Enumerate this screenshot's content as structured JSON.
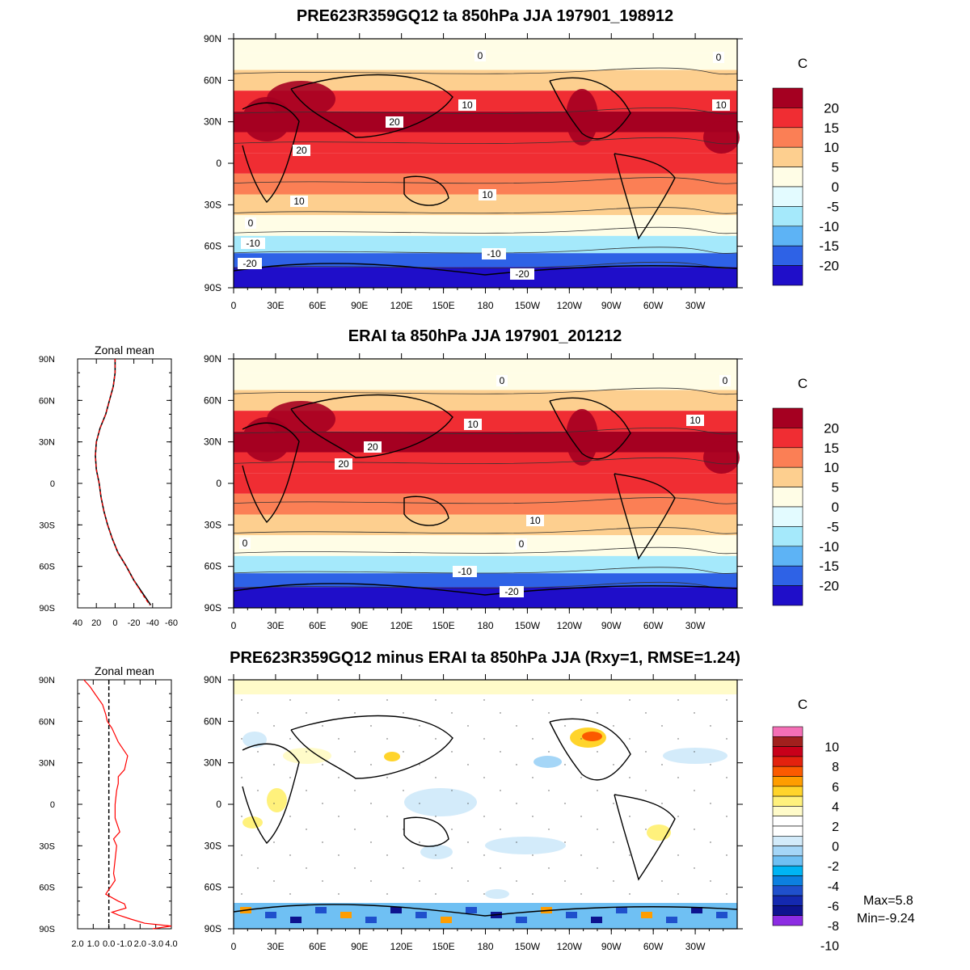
{
  "panels": [
    {
      "title": "PRE623R359GQ12 ta 850hPa JJA 197901_198912",
      "units": "C",
      "colorbar": {
        "colors": [
          "#a50021",
          "#f02d33",
          "#fb7f55",
          "#fdcf8f",
          "#fffde6",
          "#e3fbff",
          "#a5e9fb",
          "#5db3f5",
          "#2e62e6",
          "#1f0ec9"
        ],
        "labels": [
          "20",
          "15",
          "10",
          "5",
          "0",
          "-5",
          "-10",
          "-15",
          "-20"
        ]
      },
      "contour_labels": [
        "0",
        "0",
        "10",
        "10",
        "20",
        "20",
        "10",
        "10",
        "0",
        "-10",
        "-10",
        "-20",
        "-20"
      ]
    },
    {
      "title": "ERAI ta 850hPa JJA 197901_201212",
      "units": "C",
      "colorbar": {
        "colors": [
          "#a50021",
          "#f02d33",
          "#fb7f55",
          "#fdcf8f",
          "#fffde6",
          "#e3fbff",
          "#a5e9fb",
          "#5db3f5",
          "#2e62e6",
          "#1f0ec9"
        ],
        "labels": [
          "20",
          "15",
          "10",
          "5",
          "0",
          "-5",
          "-10",
          "-15",
          "-20"
        ]
      },
      "contour_labels": [
        "0",
        "0",
        "10",
        "10",
        "20",
        "20",
        "10",
        "0",
        "0",
        "-10",
        "-20"
      ]
    },
    {
      "title": "PRE623R359GQ12 minus ERAI ta 850hPa JJA (Rxy=1, RMSE=1.24)",
      "units": "C",
      "colorbar": {
        "colors": [
          "#f46fb6",
          "#a1201d",
          "#c8001a",
          "#e3220e",
          "#fb5a00",
          "#ff9d00",
          "#ffd42b",
          "#fff17c",
          "#fffbc9",
          "#ffffff",
          "#ffffff",
          "#d3ebfa",
          "#a5d6f7",
          "#6fc0f3",
          "#00b4f4",
          "#0c80e0",
          "#1f50cc",
          "#1429b0",
          "#0d138f",
          "#8c2ce3"
        ],
        "labels": [
          "10",
          "8",
          "6",
          "4",
          "2",
          "0",
          "-2",
          "-4",
          "-6",
          "-8",
          "-10"
        ]
      },
      "max_text": "Max=5.8",
      "min_text": "Min=-9.24"
    }
  ],
  "map_axes": {
    "lat_labels": [
      "90N",
      "60N",
      "30N",
      "0",
      "30S",
      "60S",
      "90S"
    ],
    "lon_labels": [
      "0",
      "30E",
      "60E",
      "90E",
      "120E",
      "150E",
      "180",
      "150W",
      "120W",
      "90W",
      "60W",
      "30W"
    ]
  },
  "zonal_plots": [
    {
      "title": "Zonal mean",
      "x_ticks": [
        "40",
        "20",
        "0",
        "-20",
        "-40",
        "-60"
      ],
      "lat_labels": [
        "90N",
        "60N",
        "30N",
        "0",
        "30S",
        "60S",
        "90S"
      ]
    },
    {
      "title": "Zonal mean",
      "x_ticks": [
        "2.0",
        "1.0",
        "0.0",
        "-1.0",
        "2.0",
        "-3.0",
        "4.0"
      ],
      "lat_labels": [
        "90N",
        "60N",
        "30N",
        "0",
        "30S",
        "60S",
        "90S"
      ]
    }
  ],
  "chart_data": [
    {
      "type": "heatmap",
      "title": "PRE623R359GQ12 ta 850hPa JJA 197901_198912",
      "colorbar_label": "C",
      "levels": [
        -20,
        -15,
        -10,
        -5,
        0,
        5,
        10,
        15,
        20
      ],
      "zonal_band_means": {
        "lat": [
          85,
          75,
          60,
          45,
          30,
          15,
          0,
          -15,
          -30,
          -45,
          -60,
          -70,
          -80
        ],
        "ta": [
          1,
          3,
          9,
          15,
          20,
          19,
          17,
          14,
          8,
          2,
          -8,
          -16,
          -24
        ]
      }
    },
    {
      "type": "line",
      "title": "Zonal mean",
      "xlim": [
        40,
        -60
      ],
      "ylim": [
        -90,
        90
      ],
      "lat": [
        90,
        80,
        70,
        60,
        50,
        40,
        30,
        20,
        10,
        0,
        -10,
        -20,
        -30,
        -40,
        -50,
        -60,
        -70,
        -80,
        -88
      ],
      "series": [
        {
          "color": "#000000",
          "values": [
            0,
            0,
            2,
            6,
            10,
            16,
            20,
            21,
            20,
            17,
            15,
            12,
            8,
            3,
            -3,
            -12,
            -20,
            -30,
            -38
          ]
        },
        {
          "color": "#ff0000",
          "values": [
            0,
            0,
            2,
            6,
            10,
            16,
            20,
            21,
            20,
            17,
            15,
            12,
            8,
            3,
            -3,
            -12,
            -20,
            -29,
            -37
          ]
        }
      ]
    },
    {
      "type": "heatmap",
      "title": "ERAI ta 850hPa JJA 197901_201212",
      "colorbar_label": "C",
      "levels": [
        -20,
        -15,
        -10,
        -5,
        0,
        5,
        10,
        15,
        20
      ],
      "zonal_band_means": {
        "lat": [
          85,
          75,
          60,
          45,
          30,
          15,
          0,
          -15,
          -30,
          -45,
          -60,
          -70,
          -80
        ],
        "ta": [
          1,
          3,
          9,
          15,
          20,
          19,
          17,
          14,
          8,
          2,
          -8,
          -16,
          -24
        ]
      }
    },
    {
      "type": "line",
      "title": "Zonal mean",
      "xlim": [
        2,
        -4
      ],
      "ylim": [
        -90,
        90
      ],
      "lat": [
        90,
        85,
        80,
        72,
        65,
        60,
        55,
        45,
        35,
        25,
        20,
        15,
        10,
        0,
        -10,
        -20,
        -25,
        -30,
        -40,
        -50,
        -55,
        -60,
        -65,
        -70,
        -72,
        -75,
        -78,
        -80,
        -83,
        -86,
        -88,
        -90
      ],
      "series": [
        {
          "color": "#ff0000",
          "values": [
            1.6,
            1.2,
            0.9,
            0.4,
            0.2,
            0.1,
            -0.2,
            -0.6,
            -1.2,
            -1.0,
            -0.6,
            -0.6,
            -0.5,
            -0.4,
            -0.4,
            -0.7,
            -0.3,
            -0.5,
            -0.4,
            -0.3,
            -0.4,
            -0.1,
            0.2,
            -0.6,
            -1.0,
            -1.1,
            -0.2,
            -0.6,
            -1.4,
            -2.3,
            -4.0,
            -2.8
          ]
        },
        {
          "color": "#000000",
          "values": [
            0,
            0
          ]
        }
      ],
      "zero_line": 0
    },
    {
      "type": "heatmap",
      "title": "PRE623R359GQ12 minus ERAI ta 850hPa JJA (Rxy=1, RMSE=1.24)",
      "colorbar_label": "C",
      "levels": [
        -10,
        -9,
        -8,
        -7,
        -6,
        -5,
        -4,
        -3,
        -2,
        -1,
        0,
        1,
        2,
        3,
        4,
        5,
        6,
        7,
        8,
        9,
        10
      ],
      "max": 5.8,
      "min": -9.24
    }
  ]
}
